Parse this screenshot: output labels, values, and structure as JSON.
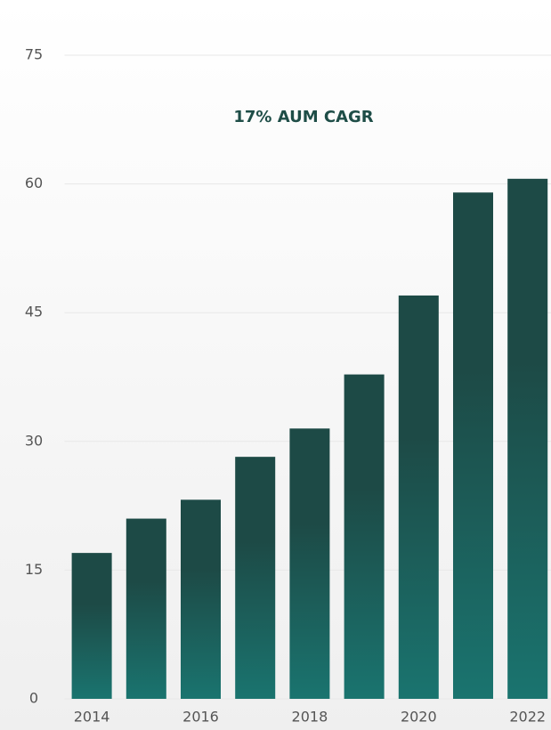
{
  "chart_data": {
    "type": "bar",
    "title": "17% AUM CAGR",
    "categories": [
      "2014",
      null,
      "2016",
      null,
      "2018",
      null,
      "2020",
      null,
      "2022"
    ],
    "values": [
      17.0,
      21.0,
      23.2,
      28.2,
      31.5,
      37.8,
      47.0,
      59.0,
      60.6
    ],
    "color": [
      "#1d4a46",
      "#1a746f"
    ],
    "ylim": [
      0,
      75
    ],
    "yticks": [
      0,
      15,
      30,
      45,
      60,
      75
    ],
    "grid": true
  }
}
